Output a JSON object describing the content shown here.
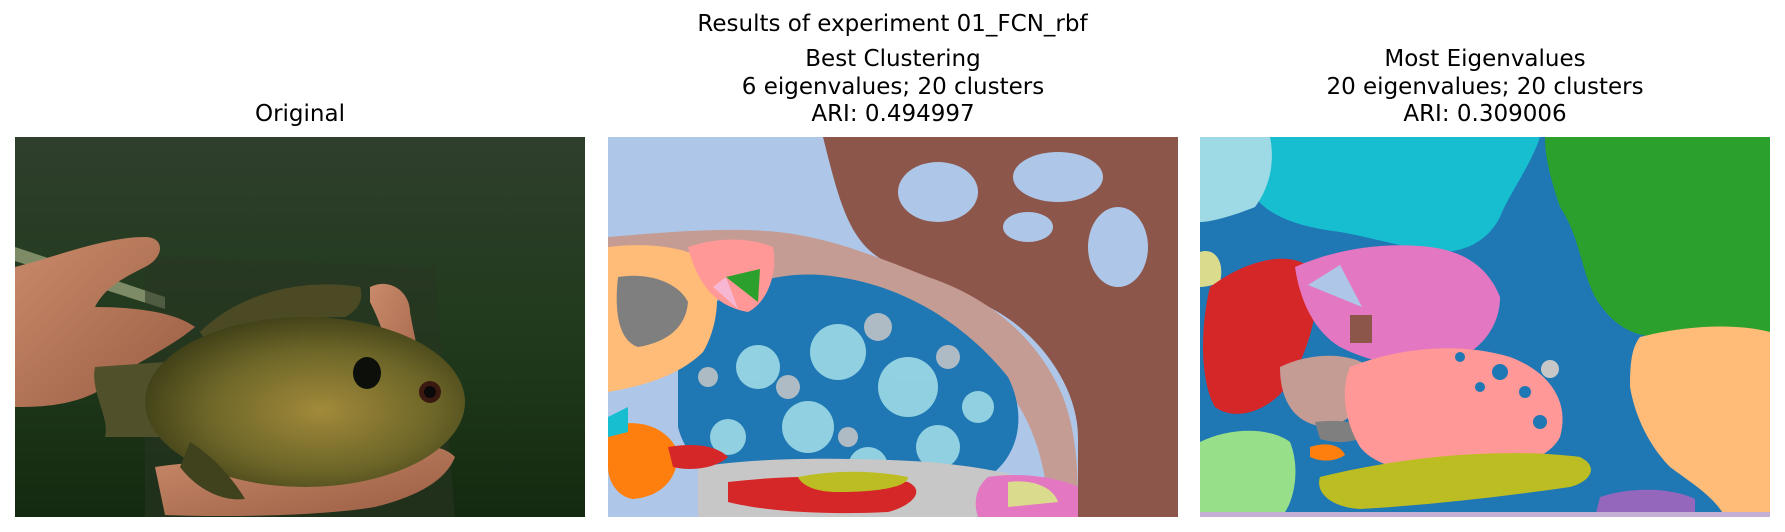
{
  "figure": {
    "suptitle": "Results of experiment 01_FCN_rbf"
  },
  "panels": [
    {
      "id": "original",
      "title_lines": [
        "Original"
      ],
      "image": "photo of a bluegill sunfish held in two hands against dark green water"
    },
    {
      "id": "best",
      "title_lines": [
        "Best Clustering",
        "6 eigenvalues; 20 clusters",
        "ARI: 0.494997"
      ],
      "image": "segmentation map with 20 color-coded clusters"
    },
    {
      "id": "most",
      "title_lines": [
        "Most Eigenvalues",
        "20 eigenvalues; 20 clusters",
        "ARI: 0.309006"
      ],
      "image": "segmentation map with 20 color-coded clusters"
    }
  ],
  "palette": {
    "blue": "#1f77b4",
    "light_blue": "#aec7e8",
    "orange": "#ff7f0e",
    "light_orange": "#ffbb78",
    "green": "#2ca02c",
    "light_green": "#98df8a",
    "red": "#d62728",
    "pink": "#ff9896",
    "purple": "#9467bd",
    "light_purple": "#c5b0d5",
    "brown": "#8c564b",
    "tan": "#c49c94",
    "magenta": "#e377c2",
    "light_pink": "#f7b6d2",
    "gray": "#7f7f7f",
    "light_gray": "#c7c7c7",
    "olive": "#bcbd22",
    "light_olive": "#dbdb8d",
    "cyan": "#17becf",
    "light_cyan": "#9edae5"
  }
}
